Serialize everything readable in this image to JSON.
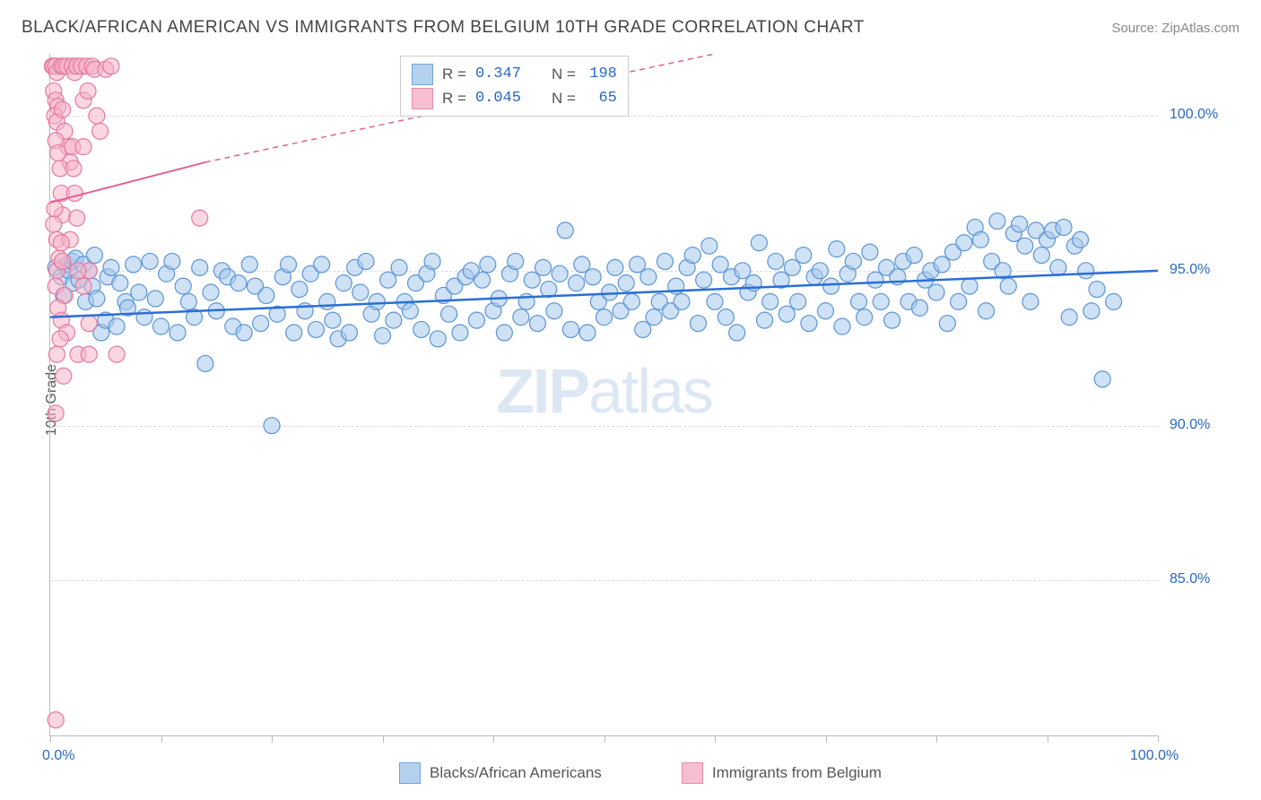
{
  "title": "BLACK/AFRICAN AMERICAN VS IMMIGRANTS FROM BELGIUM 10TH GRADE CORRELATION CHART",
  "source_label": "Source: ZipAtlas.com",
  "y_axis_label": "10th Grade",
  "watermark_bold": "ZIP",
  "watermark_rest": "atlas",
  "chart": {
    "type": "scatter",
    "xlim": [
      0,
      100
    ],
    "ylim": [
      80,
      102
    ],
    "x_ticks": [
      0,
      10,
      20,
      30,
      40,
      50,
      60,
      70,
      80,
      90,
      100
    ],
    "x_tick_labels": {
      "0": "0.0%",
      "100": "100.0%"
    },
    "y_gridlines": [
      85,
      90,
      95,
      100
    ],
    "y_tick_labels": {
      "85": "85.0%",
      "90": "90.0%",
      "95": "95.0%",
      "100": "100.0%"
    },
    "background_color": "#ffffff",
    "grid_color": "#dddddd",
    "axis_color": "#bbbbbb",
    "tick_label_color": "#2968c0",
    "marker_radius": 9,
    "marker_stroke_width": 1.2,
    "series": [
      {
        "name": "Blacks/African Americans",
        "fill_color": "#a7c9ec",
        "stroke_color": "#5a95d6",
        "fill_opacity": 0.55,
        "R": "0.347",
        "N": "198",
        "trend": {
          "x1": 0,
          "y1": 93.5,
          "x2": 100,
          "y2": 95.0,
          "stroke": "#2a6fd6",
          "width": 2.5,
          "dash": "none"
        },
        "points": [
          [
            0.5,
            95.1
          ],
          [
            1.0,
            94.8
          ],
          [
            1.2,
            94.2
          ],
          [
            1.5,
            95.2
          ],
          [
            1.7,
            95.0
          ],
          [
            2,
            95.3
          ],
          [
            2.1,
            94.6
          ],
          [
            2.3,
            95.4
          ],
          [
            2.6,
            94.7
          ],
          [
            3,
            95.2
          ],
          [
            3.2,
            94.0
          ],
          [
            3.5,
            95.0
          ],
          [
            3.8,
            94.5
          ],
          [
            4,
            95.5
          ],
          [
            4.2,
            94.1
          ],
          [
            4.6,
            93.0
          ],
          [
            5,
            93.4
          ],
          [
            5.2,
            94.8
          ],
          [
            5.5,
            95.1
          ],
          [
            6,
            93.2
          ],
          [
            6.3,
            94.6
          ],
          [
            6.8,
            94.0
          ],
          [
            7,
            93.8
          ],
          [
            7.5,
            95.2
          ],
          [
            8,
            94.3
          ],
          [
            8.5,
            93.5
          ],
          [
            9,
            95.3
          ],
          [
            9.5,
            94.1
          ],
          [
            10,
            93.2
          ],
          [
            10.5,
            94.9
          ],
          [
            11,
            95.3
          ],
          [
            11.5,
            93.0
          ],
          [
            12,
            94.5
          ],
          [
            12.5,
            94.0
          ],
          [
            13,
            93.5
          ],
          [
            13.5,
            95.1
          ],
          [
            14,
            92.0
          ],
          [
            14.5,
            94.3
          ],
          [
            15,
            93.7
          ],
          [
            15.5,
            95.0
          ],
          [
            16,
            94.8
          ],
          [
            16.5,
            93.2
          ],
          [
            17,
            94.6
          ],
          [
            17.5,
            93.0
          ],
          [
            18,
            95.2
          ],
          [
            18.5,
            94.5
          ],
          [
            19,
            93.3
          ],
          [
            19.5,
            94.2
          ],
          [
            20,
            90.0
          ],
          [
            20.5,
            93.6
          ],
          [
            21,
            94.8
          ],
          [
            21.5,
            95.2
          ],
          [
            22,
            93.0
          ],
          [
            22.5,
            94.4
          ],
          [
            23,
            93.7
          ],
          [
            23.5,
            94.9
          ],
          [
            24,
            93.1
          ],
          [
            24.5,
            95.2
          ],
          [
            25,
            94.0
          ],
          [
            25.5,
            93.4
          ],
          [
            26,
            92.8
          ],
          [
            26.5,
            94.6
          ],
          [
            27,
            93.0
          ],
          [
            27.5,
            95.1
          ],
          [
            28,
            94.3
          ],
          [
            28.5,
            95.3
          ],
          [
            29,
            93.6
          ],
          [
            29.5,
            94.0
          ],
          [
            30,
            92.9
          ],
          [
            30.5,
            94.7
          ],
          [
            31,
            93.4
          ],
          [
            31.5,
            95.1
          ],
          [
            32,
            94.0
          ],
          [
            32.5,
            93.7
          ],
          [
            33,
            94.6
          ],
          [
            33.5,
            93.1
          ],
          [
            34,
            94.9
          ],
          [
            34.5,
            95.3
          ],
          [
            35,
            92.8
          ],
          [
            35.5,
            94.2
          ],
          [
            36,
            93.6
          ],
          [
            36.5,
            94.5
          ],
          [
            37,
            93.0
          ],
          [
            37.5,
            94.8
          ],
          [
            38,
            95.0
          ],
          [
            38.5,
            93.4
          ],
          [
            39,
            94.7
          ],
          [
            39.5,
            95.2
          ],
          [
            40,
            93.7
          ],
          [
            40.5,
            94.1
          ],
          [
            41,
            93.0
          ],
          [
            41.5,
            94.9
          ],
          [
            42,
            95.3
          ],
          [
            42.5,
            93.5
          ],
          [
            43,
            94.0
          ],
          [
            43.5,
            94.7
          ],
          [
            44,
            93.3
          ],
          [
            44.5,
            95.1
          ],
          [
            45,
            94.4
          ],
          [
            45.5,
            93.7
          ],
          [
            46,
            94.9
          ],
          [
            46.5,
            96.3
          ],
          [
            47,
            93.1
          ],
          [
            47.5,
            94.6
          ],
          [
            48,
            95.2
          ],
          [
            48.5,
            93.0
          ],
          [
            49,
            94.8
          ],
          [
            49.5,
            94.0
          ],
          [
            50,
            93.5
          ],
          [
            50.5,
            94.3
          ],
          [
            51,
            95.1
          ],
          [
            51.5,
            93.7
          ],
          [
            52,
            94.6
          ],
          [
            52.5,
            94.0
          ],
          [
            53,
            95.2
          ],
          [
            53.5,
            93.1
          ],
          [
            54,
            94.8
          ],
          [
            54.5,
            93.5
          ],
          [
            55,
            94.0
          ],
          [
            55.5,
            95.3
          ],
          [
            56,
            93.7
          ],
          [
            56.5,
            94.5
          ],
          [
            57,
            94.0
          ],
          [
            57.5,
            95.1
          ],
          [
            58,
            95.5
          ],
          [
            58.5,
            93.3
          ],
          [
            59,
            94.7
          ],
          [
            59.5,
            95.8
          ],
          [
            60,
            94.0
          ],
          [
            60.5,
            95.2
          ],
          [
            61,
            93.5
          ],
          [
            61.5,
            94.8
          ],
          [
            62,
            93.0
          ],
          [
            62.5,
            95.0
          ],
          [
            63,
            94.3
          ],
          [
            63.5,
            94.6
          ],
          [
            64,
            95.9
          ],
          [
            64.5,
            93.4
          ],
          [
            65,
            94.0
          ],
          [
            65.5,
            95.3
          ],
          [
            66,
            94.7
          ],
          [
            66.5,
            93.6
          ],
          [
            67,
            95.1
          ],
          [
            67.5,
            94.0
          ],
          [
            68,
            95.5
          ],
          [
            68.5,
            93.3
          ],
          [
            69,
            94.8
          ],
          [
            69.5,
            95.0
          ],
          [
            70,
            93.7
          ],
          [
            70.5,
            94.5
          ],
          [
            71,
            95.7
          ],
          [
            71.5,
            93.2
          ],
          [
            72,
            94.9
          ],
          [
            72.5,
            95.3
          ],
          [
            73,
            94.0
          ],
          [
            73.5,
            93.5
          ],
          [
            74,
            95.6
          ],
          [
            74.5,
            94.7
          ],
          [
            75,
            94.0
          ],
          [
            75.5,
            95.1
          ],
          [
            76,
            93.4
          ],
          [
            76.5,
            94.8
          ],
          [
            77,
            95.3
          ],
          [
            77.5,
            94.0
          ],
          [
            78,
            95.5
          ],
          [
            78.5,
            93.8
          ],
          [
            79,
            94.7
          ],
          [
            79.5,
            95.0
          ],
          [
            80,
            94.3
          ],
          [
            80.5,
            95.2
          ],
          [
            81,
            93.3
          ],
          [
            81.5,
            95.6
          ],
          [
            82,
            94.0
          ],
          [
            82.5,
            95.9
          ],
          [
            83,
            94.5
          ],
          [
            83.5,
            96.4
          ],
          [
            84,
            96.0
          ],
          [
            84.5,
            93.7
          ],
          [
            85,
            95.3
          ],
          [
            85.5,
            96.6
          ],
          [
            86,
            95.0
          ],
          [
            86.5,
            94.5
          ],
          [
            87,
            96.2
          ],
          [
            87.5,
            96.5
          ],
          [
            88,
            95.8
          ],
          [
            88.5,
            94.0
          ],
          [
            89,
            96.3
          ],
          [
            89.5,
            95.5
          ],
          [
            90,
            96.0
          ],
          [
            90.5,
            96.3
          ],
          [
            91,
            95.1
          ],
          [
            91.5,
            96.4
          ],
          [
            92,
            93.5
          ],
          [
            92.5,
            95.8
          ],
          [
            93,
            96.0
          ],
          [
            93.5,
            95.0
          ],
          [
            94,
            93.7
          ],
          [
            95,
            91.5
          ],
          [
            94.5,
            94.4
          ],
          [
            96,
            94.0
          ]
        ]
      },
      {
        "name": "Immigrants from Belgium",
        "fill_color": "#f5b5c8",
        "stroke_color": "#e679a0",
        "fill_opacity": 0.55,
        "R": "0.045",
        "N": "65",
        "trend_solid": {
          "x1": 0,
          "y1": 97.2,
          "x2": 14,
          "y2": 98.5,
          "stroke": "#e26190",
          "width": 2,
          "dash": "none"
        },
        "trend_dash": {
          "x1": 14,
          "y1": 98.5,
          "x2": 60,
          "y2": 102,
          "stroke": "#e26190",
          "width": 1.5,
          "dash": "6,5"
        },
        "points": [
          [
            0.2,
            101.6
          ],
          [
            0.3,
            101.6
          ],
          [
            0.5,
            101.6
          ],
          [
            0.6,
            101.4
          ],
          [
            0.3,
            100.8
          ],
          [
            0.5,
            100.5
          ],
          [
            0.7,
            100.3
          ],
          [
            0.4,
            100.0
          ],
          [
            0.6,
            99.8
          ],
          [
            1.0,
            101.6
          ],
          [
            1.2,
            101.6
          ],
          [
            1.1,
            100.2
          ],
          [
            1.3,
            99.5
          ],
          [
            1.5,
            101.6
          ],
          [
            1.6,
            99.0
          ],
          [
            1.8,
            98.5
          ],
          [
            0.5,
            99.2
          ],
          [
            0.7,
            98.8
          ],
          [
            0.9,
            98.3
          ],
          [
            1.0,
            97.5
          ],
          [
            1.1,
            96.8
          ],
          [
            2.0,
            101.6
          ],
          [
            2.2,
            101.4
          ],
          [
            2.4,
            101.6
          ],
          [
            2.0,
            99.0
          ],
          [
            2.1,
            98.3
          ],
          [
            2.2,
            97.5
          ],
          [
            2.4,
            96.7
          ],
          [
            2.8,
            101.6
          ],
          [
            3.0,
            100.5
          ],
          [
            3.0,
            99.0
          ],
          [
            3.3,
            101.6
          ],
          [
            3.4,
            100.8
          ],
          [
            3.8,
            101.6
          ],
          [
            4.0,
            101.5
          ],
          [
            4.2,
            100.0
          ],
          [
            0.8,
            95.4
          ],
          [
            0.6,
            95.0
          ],
          [
            0.5,
            94.5
          ],
          [
            1.1,
            95.3
          ],
          [
            1.3,
            94.2
          ],
          [
            0.7,
            93.8
          ],
          [
            1.0,
            93.4
          ],
          [
            1.5,
            93.0
          ],
          [
            0.9,
            92.8
          ],
          [
            0.6,
            92.3
          ],
          [
            1.2,
            91.6
          ],
          [
            2.5,
            92.3
          ],
          [
            3.5,
            92.3
          ],
          [
            6.0,
            92.3
          ],
          [
            0.5,
            90.4
          ],
          [
            3.0,
            94.5
          ],
          [
            3.5,
            95.0
          ],
          [
            0.4,
            97.0
          ],
          [
            0.3,
            96.5
          ],
          [
            0.6,
            96.0
          ],
          [
            1.8,
            96.0
          ],
          [
            1.0,
            95.9
          ],
          [
            4.5,
            99.5
          ],
          [
            5.0,
            101.5
          ],
          [
            5.5,
            101.6
          ],
          [
            0.5,
            80.5
          ],
          [
            13.5,
            96.7
          ],
          [
            2.5,
            95.0
          ],
          [
            3.5,
            93.3
          ]
        ]
      }
    ]
  },
  "legend_top": {
    "R_label": "R =",
    "N_label": "N ="
  },
  "legend_bottom": [
    {
      "label": "Blacks/African Americans",
      "fill": "#a7c9ec",
      "stroke": "#5a95d6"
    },
    {
      "label": "Immigrants from Belgium",
      "fill": "#f5b5c8",
      "stroke": "#e679a0"
    }
  ]
}
